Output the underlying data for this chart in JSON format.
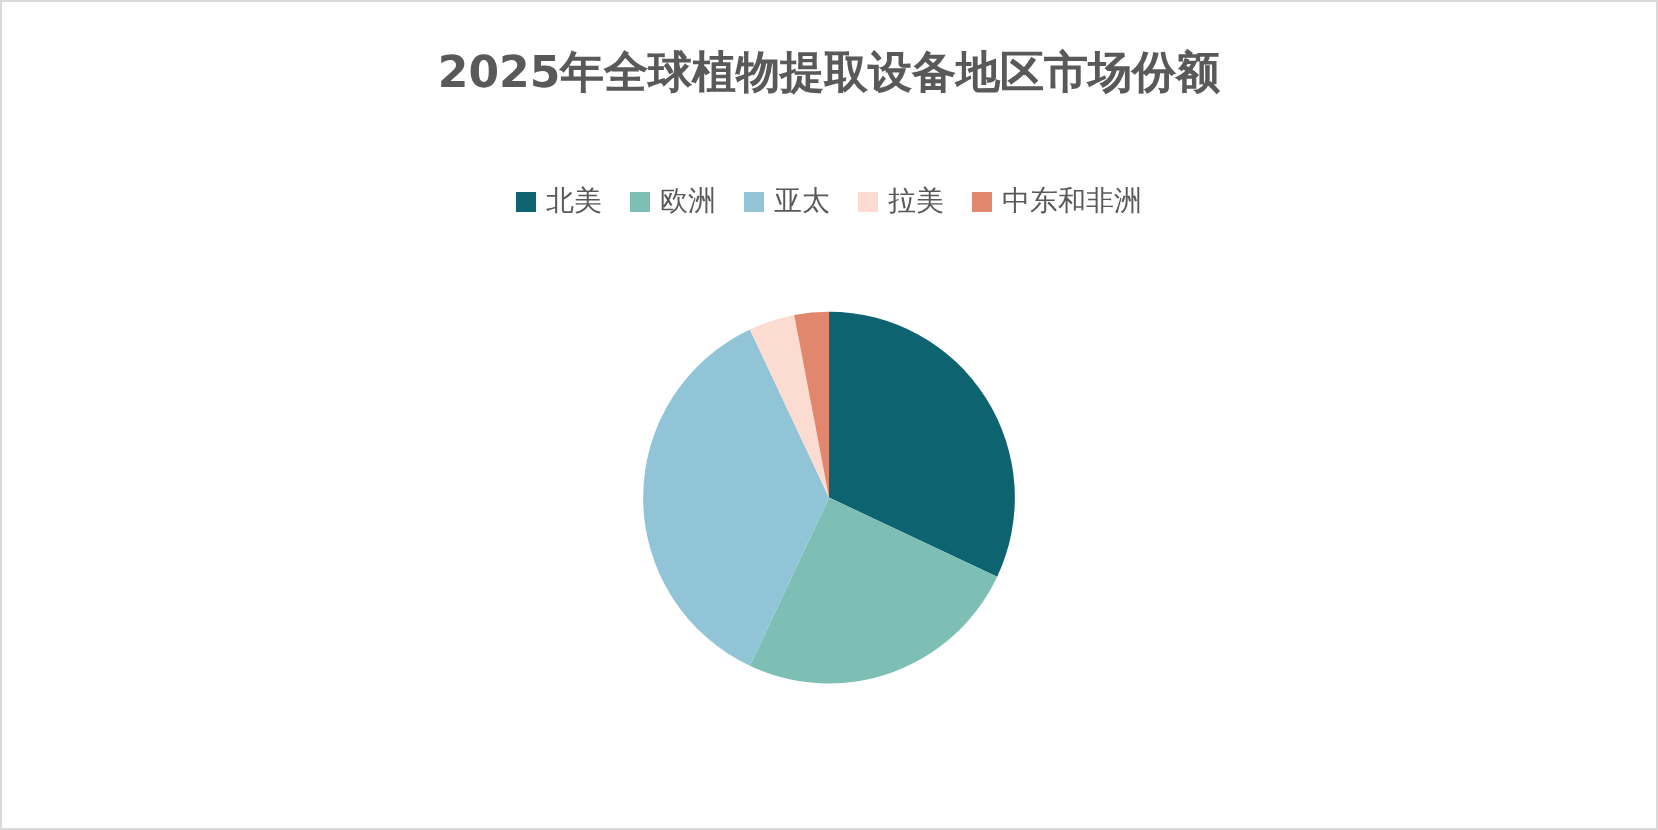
{
  "chart_data": {
    "type": "pie",
    "title": "2025年全球植物提取设备地区市场份额",
    "categories": [
      "北美",
      "欧洲",
      "亚太",
      "拉美",
      "中东和非洲"
    ],
    "values": [
      32,
      25,
      36,
      4,
      3
    ],
    "colors": [
      "#0e6370",
      "#7dbfb5",
      "#92c4d8",
      "#fcdcd0",
      "#e0876e"
    ],
    "legend": "top"
  }
}
